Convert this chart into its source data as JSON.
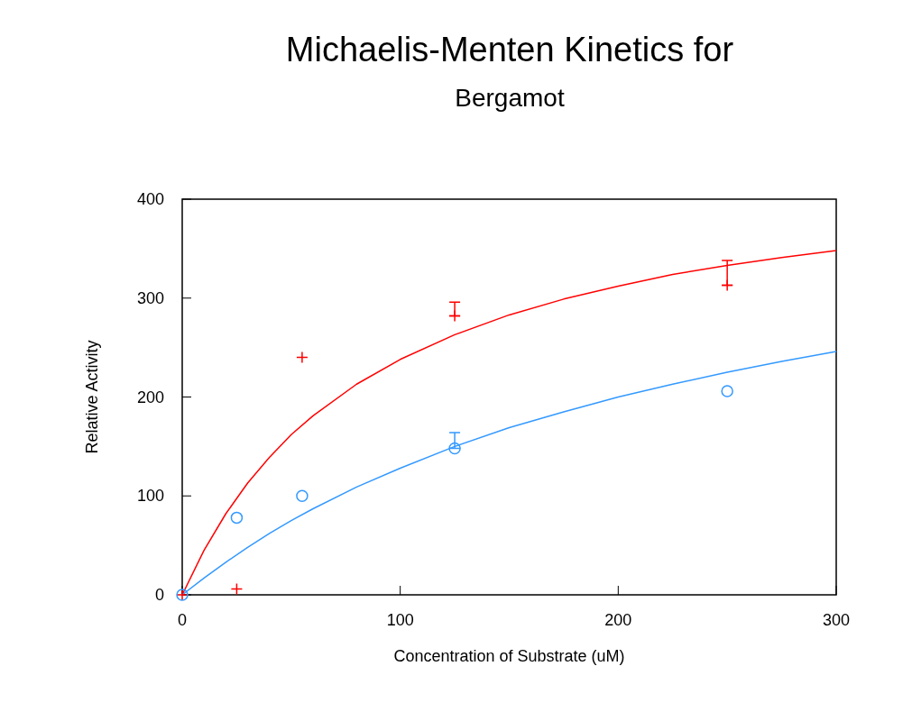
{
  "chart_data": {
    "type": "scatter",
    "title": "Michaelis-Menten Kinetics for",
    "subtitle": "Bergamot",
    "xlabel": "Concentration of Substrate (uM)",
    "ylabel": "Relative Activity",
    "xlim": [
      0,
      300
    ],
    "xticks": [
      0,
      100,
      200,
      300
    ],
    "ylim": [
      0,
      400
    ],
    "yticks": [
      0,
      100,
      200,
      300,
      400
    ],
    "grid": false,
    "series": [
      {
        "marker": "cross",
        "color": "#ff0000",
        "x": [
          0,
          25,
          55,
          125,
          250
        ],
        "values": [
          0,
          6,
          240,
          282,
          313
        ],
        "errors": [
          null,
          null,
          null,
          [
            282,
            296
          ],
          [
            313,
            338
          ]
        ]
      },
      {
        "marker": "circle",
        "color": "#3399ff",
        "x": [
          0,
          25,
          55,
          125,
          250
        ],
        "values": [
          0,
          78,
          100,
          148,
          206
        ],
        "errors": [
          null,
          null,
          null,
          [
            148,
            164
          ],
          null
        ]
      },
      {
        "type": "line",
        "marker": "none",
        "color": "#ff0000",
        "x": [
          0,
          10,
          20,
          30,
          40,
          50,
          60,
          80,
          100,
          125,
          150,
          175,
          200,
          225,
          250,
          275,
          300
        ],
        "values": [
          0,
          45,
          82,
          113,
          139,
          162,
          181,
          213,
          238,
          263,
          283,
          299,
          312,
          324,
          333,
          341,
          348
        ]
      },
      {
        "type": "line",
        "marker": "none",
        "color": "#3399ff",
        "x": [
          0,
          10,
          20,
          30,
          40,
          50,
          60,
          80,
          100,
          125,
          150,
          175,
          200,
          225,
          250,
          275,
          300
        ],
        "values": [
          0,
          17,
          33,
          48,
          62,
          75,
          87,
          109,
          128,
          150,
          169,
          185,
          200,
          213,
          225,
          236,
          246
        ]
      }
    ]
  }
}
